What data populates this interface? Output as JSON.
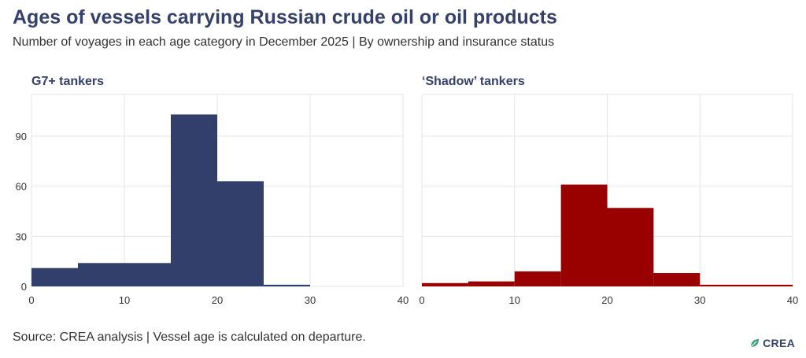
{
  "title": "Ages of vessels carrying Russian crude oil or oil products",
  "subtitle": "Number of voyages in each age category in December 2025 | By ownership and insurance status",
  "source": "Source: CREA analysis | Vessel age is calculated on departure.",
  "logo_text": "CREA",
  "colors": {
    "g7": "#323f6b",
    "shadow": "#990000",
    "grid": "#e6e6e6",
    "title": "#35416b"
  },
  "chart_data": [
    {
      "type": "bar",
      "panel_title": "G7+ tankers",
      "bin_edges": [
        0,
        5,
        15,
        20,
        25,
        30,
        40
      ],
      "values": [
        11,
        14,
        103,
        63,
        1,
        0
      ],
      "xlim": [
        0,
        40
      ],
      "ylim": [
        0,
        115
      ],
      "x_ticks": [
        0,
        10,
        20,
        30,
        40
      ],
      "y_ticks": [
        0,
        30,
        60,
        90
      ],
      "x_tick_labels": [
        "0",
        "10",
        "20",
        "30",
        "40"
      ],
      "y_tick_labels": [
        "0",
        "30",
        "60",
        "90"
      ],
      "color": "#323f6b"
    },
    {
      "type": "bar",
      "panel_title": "‘Shadow’ tankers",
      "bin_edges": [
        0,
        5,
        10,
        15,
        20,
        25,
        30,
        40
      ],
      "values": [
        2,
        3,
        9,
        61,
        47,
        8,
        1
      ],
      "xlim": [
        0,
        40
      ],
      "ylim": [
        0,
        115
      ],
      "x_ticks": [
        0,
        10,
        20,
        30,
        40
      ],
      "y_ticks": [
        0,
        30,
        60,
        90
      ],
      "x_tick_labels": [
        "0",
        "10",
        "20",
        "30",
        "40"
      ],
      "y_tick_labels": [
        "",
        "",
        "",
        ""
      ],
      "color": "#990000"
    }
  ]
}
